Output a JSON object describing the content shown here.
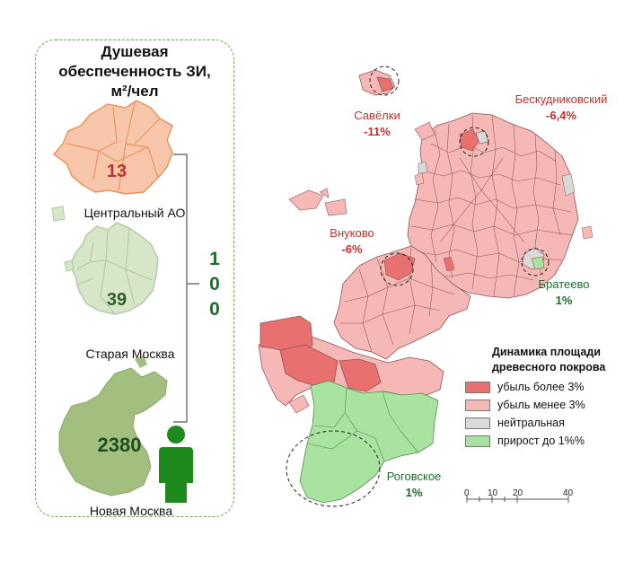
{
  "panel": {
    "title_line1": "Душевая",
    "title_line2": "обеспеченность ЗИ,",
    "title_line3": "м²/чел",
    "areas": [
      {
        "value": "13",
        "label": "Центральный АО",
        "value_color": "#c0302e"
      },
      {
        "value": "39",
        "label": "Старая Москва",
        "value_color": "#2b5e2b"
      },
      {
        "value": "2380",
        "label": "Новая Москва",
        "value_color": "#1e4d1e"
      }
    ],
    "ratio": [
      "1",
      "0",
      "0"
    ]
  },
  "annotations": [
    {
      "name": "Савёлки",
      "value": "-11%",
      "tone": "red"
    },
    {
      "name": "Бескудниковский",
      "value": "-6,4%",
      "tone": "red"
    },
    {
      "name": "Внуково",
      "value": "-6%",
      "tone": "red"
    },
    {
      "name": "Братеево",
      "value": "1%",
      "tone": "green"
    },
    {
      "name": "Роговское",
      "value": "1%",
      "tone": "green"
    }
  ],
  "legend": {
    "title_line1": "Динамика площади",
    "title_line2": "древесного покрова",
    "items": [
      {
        "label": "убыль более 3%",
        "color": "#e8706f"
      },
      {
        "label": "убыль менее 3%",
        "color": "#f6b8b7"
      },
      {
        "label": "нейтральная",
        "color": "#d9d9d9"
      },
      {
        "label": "прирост до 1%%",
        "color": "#a8e4a0"
      }
    ]
  },
  "scale_bar": {
    "ticks": [
      "0",
      "10",
      "20",
      "40"
    ]
  },
  "colors": {
    "loss_high": "#e8706f",
    "loss_low": "#f6b8b7",
    "neutral": "#d9d9d9",
    "gain": "#a8e4a0",
    "person": "#1e8a1e",
    "frame": "#6aa84f"
  }
}
